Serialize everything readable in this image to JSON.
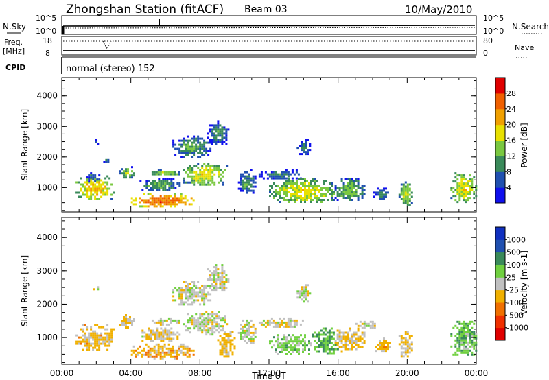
{
  "header": {
    "station": "Zhongshan Station (fitACF)",
    "beam": "Beam 03",
    "date": "10/May/2010"
  },
  "summary": {
    "nsky_label": "N.Sky",
    "nsky_tick_high": "10^5",
    "nsky_tick_low": "10^0",
    "nsearch_label": "N.Search",
    "freq_label_line1": "Freq.",
    "freq_label_line2": "[MHz]",
    "freq_tick_high": "18",
    "freq_tick_low": "8",
    "nave_label": "Nave",
    "nave_tick_high": "80",
    "nave_tick_low": "0",
    "cpid_label": "CPID",
    "cpid_text": "normal (stereo) 152"
  },
  "colors": {
    "power_scale": [
      "#1010ee",
      "#2050b0",
      "#3a8a5a",
      "#7ac840",
      "#e8e000",
      "#f0a000",
      "#f06000",
      "#e00000"
    ],
    "velocity_scale": [
      "#e00000",
      "#f03000",
      "#f07000",
      "#f0b000",
      "#c0c0c0",
      "#70d040",
      "#3a8a5a",
      "#2050b0",
      "#1030c0"
    ]
  },
  "chart_data": [
    {
      "type": "heatmap",
      "name": "power",
      "ylabel": "Slant Range [km]",
      "yticks": [
        "1000",
        "2000",
        "3000",
        "4000"
      ],
      "ylim": [
        200,
        4600
      ],
      "xlim": [
        0,
        24
      ],
      "colorbar_label": "Power [dB]",
      "colorbar_ticks": [
        "4",
        "8",
        "12",
        "16",
        "20",
        "24",
        "28"
      ],
      "clim": [
        0,
        32
      ],
      "regions": [
        {
          "t": [
            0.8,
            3.0
          ],
          "r": [
            600,
            1400
          ],
          "v": 20
        },
        {
          "t": [
            1.4,
            2.2
          ],
          "r": [
            1200,
            1500
          ],
          "v": 10
        },
        {
          "t": [
            1.8,
            2.1
          ],
          "r": [
            2450,
            2600
          ],
          "v": 7
        },
        {
          "t": [
            2.4,
            2.8
          ],
          "r": [
            1800,
            2000
          ],
          "v": 9
        },
        {
          "t": [
            3.3,
            4.2
          ],
          "r": [
            1300,
            1700
          ],
          "v": 15
        },
        {
          "t": [
            4.0,
            7.6
          ],
          "r": [
            380,
            820
          ],
          "v": 26
        },
        {
          "t": [
            4.5,
            6.8
          ],
          "r": [
            900,
            1300
          ],
          "v": 12
        },
        {
          "t": [
            5.2,
            6.8
          ],
          "r": [
            1400,
            1600
          ],
          "v": 16
        },
        {
          "t": [
            6.4,
            8.6
          ],
          "r": [
            2000,
            2700
          ],
          "v": 12
        },
        {
          "t": [
            7.0,
            9.6
          ],
          "r": [
            1100,
            1800
          ],
          "v": 18
        },
        {
          "t": [
            8.4,
            9.6
          ],
          "r": [
            2400,
            3200
          ],
          "v": 10
        },
        {
          "t": [
            10.2,
            11.2
          ],
          "r": [
            800,
            1600
          ],
          "v": 11
        },
        {
          "t": [
            11.4,
            14.0
          ],
          "r": [
            1300,
            1600
          ],
          "v": 10
        },
        {
          "t": [
            12.0,
            15.8
          ],
          "r": [
            500,
            1300
          ],
          "v": 18
        },
        {
          "t": [
            13.6,
            14.4
          ],
          "r": [
            2100,
            2600
          ],
          "v": 9
        },
        {
          "t": [
            15.8,
            17.5
          ],
          "r": [
            600,
            1300
          ],
          "v": 14
        },
        {
          "t": [
            18.0,
            19.0
          ],
          "r": [
            600,
            1000
          ],
          "v": 10
        },
        {
          "t": [
            19.5,
            20.3
          ],
          "r": [
            400,
            1200
          ],
          "v": 16
        },
        {
          "t": [
            22.5,
            24.0
          ],
          "r": [
            500,
            1500
          ],
          "v": 18
        }
      ]
    },
    {
      "type": "heatmap",
      "name": "velocity",
      "ylabel": "Slant Range [km]",
      "yticks": [
        "1000",
        "2000",
        "3000",
        "4000"
      ],
      "ylim": [
        200,
        4600
      ],
      "xlim": [
        0,
        24
      ],
      "xlabel": "Time UT",
      "xticks": [
        "00:00",
        "04:00",
        "08:00",
        "12:00",
        "16:00",
        "20:00",
        "00:00"
      ],
      "colorbar_label": "Velocity [m s-1]",
      "colorbar_ticks": [
        "-1000",
        "-500",
        "-100",
        "-25",
        "25",
        "100",
        "500",
        "1000"
      ],
      "clim": [
        -1200,
        1200
      ],
      "regions": [
        {
          "t": [
            0.8,
            3.0
          ],
          "r": [
            600,
            1400
          ],
          "v": -200
        },
        {
          "t": [
            1.8,
            2.1
          ],
          "r": [
            2450,
            2600
          ],
          "v": 0
        },
        {
          "t": [
            3.3,
            4.2
          ],
          "r": [
            1300,
            1700
          ],
          "v": -150
        },
        {
          "t": [
            4.0,
            7.6
          ],
          "r": [
            380,
            820
          ],
          "v": -250
        },
        {
          "t": [
            4.5,
            6.8
          ],
          "r": [
            900,
            1300
          ],
          "v": -80
        },
        {
          "t": [
            5.2,
            6.8
          ],
          "r": [
            1400,
            1600
          ],
          "v": 0
        },
        {
          "t": [
            6.4,
            8.6
          ],
          "r": [
            2000,
            2700
          ],
          "v": 0
        },
        {
          "t": [
            7.0,
            9.6
          ],
          "r": [
            1100,
            1800
          ],
          "v": 10
        },
        {
          "t": [
            8.4,
            9.6
          ],
          "r": [
            2400,
            3200
          ],
          "v": 0
        },
        {
          "t": [
            9.0,
            10.0
          ],
          "r": [
            400,
            1200
          ],
          "v": -150
        },
        {
          "t": [
            10.2,
            11.2
          ],
          "r": [
            800,
            1600
          ],
          "v": 0
        },
        {
          "t": [
            11.4,
            14.0
          ],
          "r": [
            1300,
            1600
          ],
          "v": 0
        },
        {
          "t": [
            12.0,
            14.5
          ],
          "r": [
            500,
            1100
          ],
          "v": 250
        },
        {
          "t": [
            13.6,
            14.4
          ],
          "r": [
            2100,
            2600
          ],
          "v": 0
        },
        {
          "t": [
            14.5,
            16.0
          ],
          "r": [
            500,
            1300
          ],
          "v": 400
        },
        {
          "t": [
            15.8,
            17.5
          ],
          "r": [
            600,
            1300
          ],
          "v": -180
        },
        {
          "t": [
            17.0,
            18.2
          ],
          "r": [
            1300,
            1500
          ],
          "v": 0
        },
        {
          "t": [
            18.0,
            19.0
          ],
          "r": [
            600,
            1000
          ],
          "v": -200
        },
        {
          "t": [
            19.5,
            20.3
          ],
          "r": [
            400,
            1200
          ],
          "v": -150
        },
        {
          "t": [
            22.5,
            24.0
          ],
          "r": [
            500,
            1500
          ],
          "v": 300
        }
      ]
    }
  ]
}
